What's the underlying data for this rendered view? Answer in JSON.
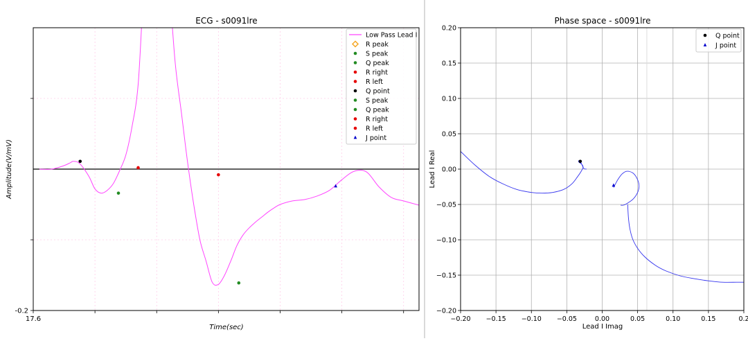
{
  "chart_data": [
    {
      "type": "line",
      "title": "ECG - s0091lre",
      "xlabel": "Time(sec)",
      "ylabel": "Amplitude(V/mV)",
      "xlim": [
        17.6,
        18.225
      ],
      "ylim": [
        -0.2,
        0.2
      ],
      "x_tick_labels": [
        "17.6"
      ],
      "y_tick_labels": [
        "-0.2"
      ],
      "grid": true,
      "legend_position": "top-right",
      "colors": {
        "signal": "#ff44ff",
        "baseline": "#000000",
        "grid": "#ffcce8"
      },
      "series": [
        {
          "name": "Low Pass Lead I",
          "x": [
            17.61,
            17.63,
            17.65,
            17.66,
            17.665,
            17.675,
            17.69,
            17.7,
            17.71,
            17.72,
            17.73,
            17.74,
            17.75,
            17.76,
            17.77,
            17.78,
            17.79,
            17.8,
            17.807,
            17.815,
            17.82,
            17.83,
            17.84,
            17.85,
            17.86,
            17.87,
            17.88,
            17.89,
            17.9,
            17.91,
            17.92,
            17.93,
            17.94,
            17.95,
            17.96,
            17.97,
            17.98,
            17.99,
            18.0,
            18.02,
            18.04,
            18.06,
            18.08,
            18.1,
            18.12,
            18.14,
            18.16,
            18.18,
            18.2,
            18.225
          ],
          "y": [
            0.0,
            0.0,
            0.005,
            0.009,
            0.011,
            0.008,
            -0.01,
            -0.028,
            -0.034,
            -0.03,
            -0.02,
            -0.002,
            0.02,
            0.06,
            0.12,
            0.2,
            0.2,
            0.2,
            0.2,
            0.2,
            0.2,
            0.15,
            0.08,
            0.01,
            -0.05,
            -0.1,
            -0.13,
            -0.16,
            -0.163,
            -0.15,
            -0.13,
            -0.108,
            -0.093,
            -0.083,
            -0.075,
            -0.068,
            -0.061,
            -0.055,
            -0.05,
            -0.045,
            -0.043,
            -0.038,
            -0.03,
            -0.015,
            -0.003,
            -0.004,
            -0.025,
            -0.04,
            -0.045,
            -0.051
          ]
        },
        {
          "name": "R peak",
          "x": [],
          "y": [],
          "marker": "diamond",
          "color": "#f5a623"
        },
        {
          "name": "S peak",
          "x": [
            17.738
          ],
          "y": [
            -0.034
          ],
          "marker": "dot",
          "color": "#228b22"
        },
        {
          "name": "Q peak",
          "x": [],
          "y": [],
          "marker": "dot",
          "color": "#228b22"
        },
        {
          "name": "R right",
          "x": [
            17.77
          ],
          "y": [
            0.002
          ],
          "marker": "dot",
          "color": "#e60000"
        },
        {
          "name": "R left",
          "x": [
            17.9
          ],
          "y": [
            -0.008
          ],
          "marker": "dot",
          "color": "#e60000"
        },
        {
          "name": "Q point",
          "x": [
            17.676
          ],
          "y": [
            0.011
          ],
          "marker": "dot",
          "color": "#000000"
        },
        {
          "name": "S peak",
          "x": [
            17.933
          ],
          "y": [
            -0.161
          ],
          "marker": "dot",
          "color": "#228b22"
        },
        {
          "name": "Q peak",
          "x": [],
          "y": [],
          "marker": "dot",
          "color": "#228b22"
        },
        {
          "name": "R right",
          "x": [],
          "y": [],
          "marker": "dot",
          "color": "#e60000"
        },
        {
          "name": "R left",
          "x": [],
          "y": [],
          "marker": "dot",
          "color": "#e60000"
        },
        {
          "name": "J point",
          "x": [
            18.09
          ],
          "y": [
            -0.024
          ],
          "marker": "triangle",
          "color": "#0000cc"
        }
      ]
    },
    {
      "type": "line",
      "title": "Phase space - s0091lre",
      "xlabel": "Lead I Imag",
      "ylabel": "Lead I Real",
      "xlim": [
        -0.2,
        0.2
      ],
      "ylim": [
        -0.2,
        0.2
      ],
      "x_ticks": [
        -0.2,
        -0.15,
        -0.1,
        -0.05,
        0.0,
        0.05,
        0.1,
        0.15,
        0.2
      ],
      "x_tick_labels": [
        "−0.20",
        "−0.15",
        "−0.10",
        "−0.05",
        "0.00",
        "0.05",
        "0.10",
        "0.15",
        "0.2"
      ],
      "y_ticks": [
        0.2,
        0.15,
        0.1,
        0.05,
        0.0,
        -0.05,
        -0.1,
        -0.15,
        -0.2
      ],
      "y_tick_labels": [
        "0.20",
        "0.15",
        "0.10",
        "0.05",
        "0.00",
        "−0.05",
        "−0.10",
        "−0.15",
        "−0.20"
      ],
      "grid": true,
      "legend_position": "top-right",
      "colors": {
        "trajectory": "#3333ee",
        "grid": "#b0b0b0",
        "extra_gridline": "#dddddd"
      },
      "series": [
        {
          "name": "trajectory",
          "x": [
            -0.2,
            -0.18,
            -0.16,
            -0.14,
            -0.12,
            -0.1,
            -0.085,
            -0.07,
            -0.055,
            -0.043,
            -0.035,
            -0.029,
            -0.027,
            -0.029,
            -0.033,
            -0.033,
            -0.03,
            -0.026,
            -0.022
          ],
          "y": [
            0.025,
            0.006,
            -0.01,
            -0.021,
            -0.029,
            -0.033,
            -0.034,
            -0.033,
            -0.029,
            -0.021,
            -0.011,
            -0.002,
            0.003,
            0.007,
            0.01,
            0.012,
            0.009,
            0.001,
            0.0
          ]
        },
        {
          "name": "loop",
          "x": [
            0.016,
            0.022,
            0.028,
            0.035,
            0.044,
            0.05,
            0.052,
            0.05,
            0.044,
            0.036,
            0.03,
            0.026
          ],
          "y": [
            -0.026,
            -0.015,
            -0.007,
            -0.003,
            -0.006,
            -0.015,
            -0.024,
            -0.033,
            -0.042,
            -0.048,
            -0.051,
            -0.051
          ]
        },
        {
          "name": "tail",
          "x": [
            0.036,
            0.037,
            0.039,
            0.043,
            0.05,
            0.06,
            0.075,
            0.09,
            0.11,
            0.13,
            0.15,
            0.17,
            0.19,
            0.2
          ],
          "y": [
            -0.05,
            -0.068,
            -0.084,
            -0.099,
            -0.112,
            -0.124,
            -0.136,
            -0.144,
            -0.151,
            -0.155,
            -0.158,
            -0.16,
            -0.16,
            -0.16
          ]
        },
        {
          "name": "Q point",
          "x": [
            -0.031
          ],
          "y": [
            0.011
          ],
          "marker": "dot",
          "color": "#000000"
        },
        {
          "name": "J point",
          "x": [
            0.016
          ],
          "y": [
            -0.023
          ],
          "marker": "triangle",
          "color": "#0000cc"
        }
      ]
    }
  ]
}
